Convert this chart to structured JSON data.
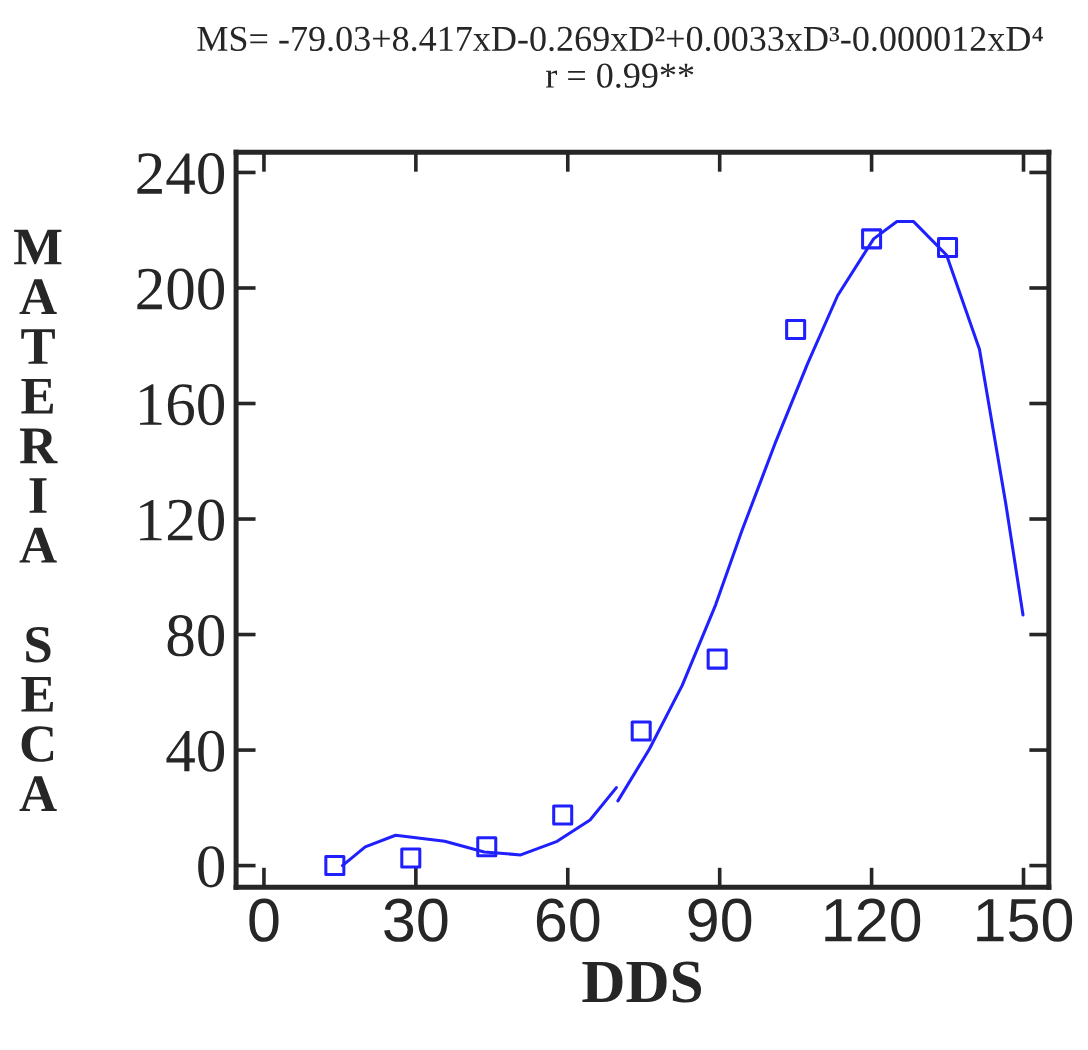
{
  "chart_data": {
    "type": "scatter",
    "title": "MS= -79.03+8.417xD-0.269xD²+0.0033xD³-0.000012xD⁴",
    "subtitle": "r = 0.99**",
    "xlabel": "DDS",
    "ylabel": "MATERIA SECA",
    "xlim": [
      -5.5,
      155
    ],
    "ylim": [
      -7.5,
      247
    ],
    "xticks": [
      0,
      30,
      60,
      90,
      120,
      150
    ],
    "yticks": [
      0,
      40,
      80,
      120,
      160,
      200,
      240
    ],
    "grid": false,
    "series": [
      {
        "marker": "square",
        "color": "#2020ff",
        "x": [
          14,
          29,
          44,
          59,
          74.5,
          89.5,
          105,
          120,
          135
        ],
        "values": [
          0,
          2.6,
          6.5,
          17.5,
          46.6,
          71.5,
          185.6,
          217,
          214
        ]
      },
      {
        "type": "line",
        "marker": "none",
        "line_style": "solid",
        "color": "#2020ff",
        "x": [
          15.5,
          20,
          26,
          35.7,
          43.5,
          50.7,
          57.9,
          64.4,
          69.6,
          69.8,
          69.9,
          76.1,
          82.6,
          89.2,
          94.4,
          100.9,
          107.4,
          113.3,
          120.4,
          125,
          128.3,
          134.8,
          141.3,
          146.5,
          149.9
        ],
        "values": [
          0,
          6.5,
          10.5,
          8.4,
          4.7,
          3.7,
          8.4,
          15.8,
          27,
          null,
          22.4,
          40.3,
          62.4,
          90.3,
          116,
          146,
          174,
          197.4,
          217,
          223,
          223,
          211.4,
          178.8,
          125.3,
          86.8
        ]
      }
    ]
  }
}
